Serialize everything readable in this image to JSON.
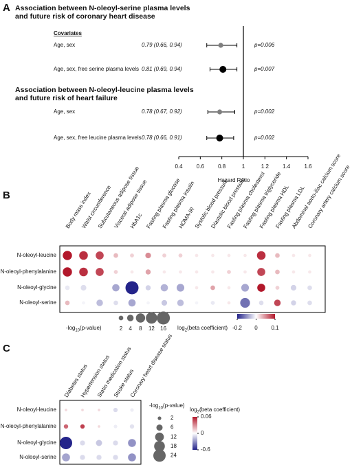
{
  "chart_data": [
    {
      "type": "forest",
      "panel": "A",
      "groups": [
        {
          "title": [
            "Association between N-oleoyl-serine plasma levels",
            "and future risk of coronary heart disease"
          ],
          "subtitle": "Covariates",
          "categories": [
            "Age, sex",
            "Age, sex, free serine plasma levels"
          ],
          "values": [
            0.79,
            0.81
          ],
          "lower": [
            0.66,
            0.69
          ],
          "upper": [
            0.94,
            0.94
          ],
          "value_labels": [
            "0.79 (0.66, 0.94)",
            "0.81 (0.69, 0.94)"
          ],
          "p_labels": [
            "p=0.006",
            "p=0.007"
          ],
          "colors": [
            "#7f7f7f",
            "#000000"
          ]
        },
        {
          "title": [
            "Association between N-oleoyl-leucine plasma levels",
            "and future risk of heart failure"
          ],
          "categories": [
            "Age, sex",
            "Age, sex, free leucine plasma levels"
          ],
          "values": [
            0.78,
            0.78
          ],
          "lower": [
            0.67,
            0.66
          ],
          "upper": [
            0.92,
            0.91
          ],
          "value_labels": [
            "0.78 (0.67, 0.92)",
            "0.78 (0.66, 0.91)"
          ],
          "p_labels": [
            "p=0.002",
            "p=0.002"
          ],
          "colors": [
            "#7f7f7f",
            "#000000"
          ]
        }
      ],
      "xlabel": "Hazard Ratio",
      "xlim": [
        0.4,
        1.6
      ],
      "xticks": [
        0.4,
        0.6,
        0.8,
        1,
        1.2,
        1.4,
        1.6
      ],
      "ref_line": 1
    },
    {
      "type": "dotmatrix",
      "panel": "B",
      "categories": [
        "Body mass index",
        "Waist circumference",
        "Subcutaneous adipose tissue",
        "Visceral adipose tissue",
        "HbA1c",
        "Fasting plasma glucose",
        "Fasting plasma insulin",
        "HOMA-IR",
        "Systolic blood pressure",
        "Diastolic blood pressure",
        "Fasting plasma cholesterol",
        "Fasting plasma triglyceride",
        "Fasting plasma HDL",
        "Fasting plasma LDL",
        "Abdominal aorto-iliac calcium score",
        "Coronary artery calcium score"
      ],
      "series": [
        {
          "name": "N-oleoyl-leucine",
          "values": [
            0.1,
            0.09,
            0.08,
            0.03,
            0.02,
            0.05,
            0.02,
            0.02,
            0.01,
            0.01,
            0.01,
            0.01,
            0.09,
            0.03,
            0.01,
            0.01
          ],
          "sizes": [
            8,
            7,
            6,
            2,
            1.5,
            3,
            1.5,
            1.5,
            1,
            1,
            1,
            1,
            7,
            2,
            1,
            1
          ]
        },
        {
          "name": "N-oleoyl-phenylalanine",
          "values": [
            0.1,
            0.09,
            0.08,
            0.02,
            0.01,
            0.04,
            0.01,
            0.01,
            0.01,
            0.01,
            0.02,
            0.01,
            0.08,
            0.03,
            0.01,
            0.01
          ],
          "sizes": [
            8,
            7,
            6,
            1.5,
            1,
            2.5,
            1,
            1,
            1,
            1,
            1.5,
            1,
            6,
            2,
            1,
            1
          ]
        },
        {
          "name": "N-oleoyl-glycine",
          "values": [
            -0.02,
            -0.03,
            0,
            -0.08,
            -0.2,
            -0.04,
            -0.07,
            -0.08,
            0.01,
            0.04,
            0.01,
            -0.08,
            0.1,
            0.02,
            -0.04,
            -0.03
          ],
          "sizes": [
            2,
            3,
            1,
            5,
            16,
            2.5,
            5,
            5.5,
            1,
            2,
            1,
            5.5,
            6,
            1.5,
            3,
            2
          ]
        },
        {
          "name": "N-oleoyl-serine",
          "values": [
            0.03,
            -0.01,
            -0.06,
            -0.03,
            -0.08,
            -0.01,
            -0.05,
            -0.06,
            -0.01,
            -0.02,
            0.01,
            -0.13,
            -0.03,
            0.08,
            -0.04,
            -0.03
          ],
          "sizes": [
            2,
            1,
            4,
            2,
            5,
            1,
            3,
            4,
            1,
            1.5,
            1,
            9,
            2,
            4,
            2.5,
            2
          ]
        }
      ],
      "size_title": [
        "-log",
        "10",
        "(p-value)"
      ],
      "size_ticks": [
        2,
        4,
        8,
        12,
        16
      ],
      "color_title": [
        "log",
        "2",
        "(beta coefficient)"
      ],
      "clim": [
        -0.2,
        0.1
      ],
      "cticks": [
        -0.2,
        0,
        0.1
      ],
      "colormap": [
        "#24248a",
        "#ffffff",
        "#b2182b"
      ]
    },
    {
      "type": "dotmatrix",
      "panel": "C",
      "categories": [
        "Diabetes status",
        "Hypertension status",
        "Statin medication status",
        "Stroke status",
        "Coronary heart disease status"
      ],
      "series": [
        {
          "name": "N-oleoyl-leucine",
          "values": [
            0.01,
            0.01,
            0.01,
            -0.1,
            -0.05
          ],
          "sizes": [
            1,
            1,
            1,
            3,
            2
          ]
        },
        {
          "name": "N-oleoyl-phenylalanine",
          "values": [
            0.04,
            0.05,
            0.01,
            -0.05,
            -0.08
          ],
          "sizes": [
            3,
            3,
            1,
            2,
            3
          ]
        },
        {
          "name": "N-oleoyl-glycine",
          "values": [
            -0.6,
            -0.1,
            -0.15,
            -0.1,
            -0.3
          ],
          "sizes": [
            24,
            4,
            6,
            4,
            10
          ]
        },
        {
          "name": "N-oleoyl-serine",
          "values": [
            -0.25,
            -0.1,
            -0.1,
            -0.1,
            -0.3
          ],
          "sizes": [
            10,
            4,
            4,
            4,
            10
          ]
        }
      ],
      "size_title": [
        "-log",
        "10",
        "(p-value)"
      ],
      "size_ticks": [
        2,
        6,
        12,
        18,
        24
      ],
      "color_title": [
        "log",
        "2",
        "(beta coefficient)"
      ],
      "clim": [
        -0.6,
        0.06
      ],
      "cticks": [
        0.06,
        0,
        -0.6
      ],
      "colormap": [
        "#24248a",
        "#ffffff",
        "#b2182b"
      ]
    }
  ]
}
